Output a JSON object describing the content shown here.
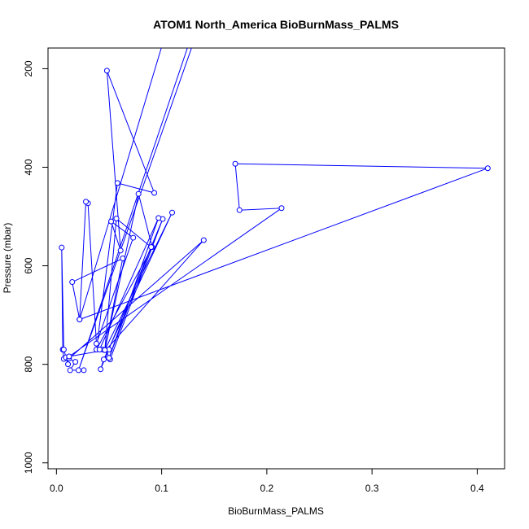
{
  "chart_data": {
    "type": "line",
    "title": "ATOM1 North_America BioBurnMass_PALMS",
    "xlabel": "BioBurnMass_PALMS",
    "ylabel": "Pressure (mbar)",
    "xlim": [
      -0.008,
      0.426
    ],
    "ylim": [
      1012,
      158
    ],
    "y_inverted": true,
    "grid": false,
    "xticks": [
      0.0,
      0.1,
      0.2,
      0.3,
      0.4
    ],
    "xtick_labels": [
      "0.0",
      "0.1",
      "0.2",
      "0.3",
      "0.4"
    ],
    "yticks": [
      200,
      400,
      600,
      800,
      1000
    ],
    "ytick_labels": [
      "200",
      "400",
      "600",
      "800",
      "1000"
    ],
    "line_color": "#0000ff",
    "marker": "open-circle",
    "series": [
      {
        "points": [
          [
            0.026,
            812
          ],
          [
            0.013,
            812
          ],
          [
            0.018,
            795
          ],
          [
            0.011,
            788
          ],
          [
            0.007,
            789
          ],
          [
            0.006,
            770
          ],
          [
            0.005,
            563
          ],
          [
            0.007,
            770
          ],
          [
            0.011,
            800
          ],
          [
            0.009,
            786
          ],
          [
            0.012,
            788
          ],
          [
            0.14,
            548
          ],
          [
            0.047,
            771
          ],
          [
            0.051,
            790
          ],
          [
            0.101,
            505
          ],
          [
            0.042,
            810
          ],
          [
            0.045,
            790
          ],
          [
            0.11,
            492
          ],
          [
            0.046,
            771
          ],
          [
            0.078,
            454
          ],
          [
            0.091,
            562
          ],
          [
            0.038,
            770
          ],
          [
            0.058,
            432
          ],
          [
            0.093,
            452
          ],
          [
            0.048,
            204
          ],
          [
            0.061,
            569
          ],
          [
            0.052,
            510
          ],
          [
            0.073,
            543
          ],
          [
            0.038,
            758
          ],
          [
            0.03,
            473
          ],
          [
            0.028,
            470
          ],
          [
            0.022,
            709
          ],
          [
            0.41,
            402
          ],
          [
            0.17,
            393
          ],
          [
            0.174,
            487
          ],
          [
            0.214,
            483
          ],
          [
            0.012,
            784
          ],
          [
            0.05,
            770
          ],
          [
            0.044,
            770
          ],
          [
            0.041,
            770
          ],
          [
            0.097,
            503
          ],
          [
            0.05,
            787
          ],
          [
            0.09,
            562
          ],
          [
            0.057,
            504
          ],
          [
            0.046,
            771
          ],
          [
            0.063,
            585
          ],
          [
            0.015,
            633
          ],
          [
            0.022,
            709
          ],
          [
            0.105,
            120
          ],
          [
            0.119,
            90
          ],
          [
            0.11,
            116
          ],
          [
            0.105,
            94
          ],
          [
            0.098,
            120
          ],
          [
            0.133,
            130
          ],
          [
            0.021,
            812
          ],
          [
            0.13,
            123
          ],
          [
            0.15,
            130
          ],
          [
            0.155,
            130
          ],
          [
            0.12,
            130
          ],
          [
            0.139,
            130
          ],
          [
            0.13,
            130
          ]
        ]
      }
    ]
  }
}
